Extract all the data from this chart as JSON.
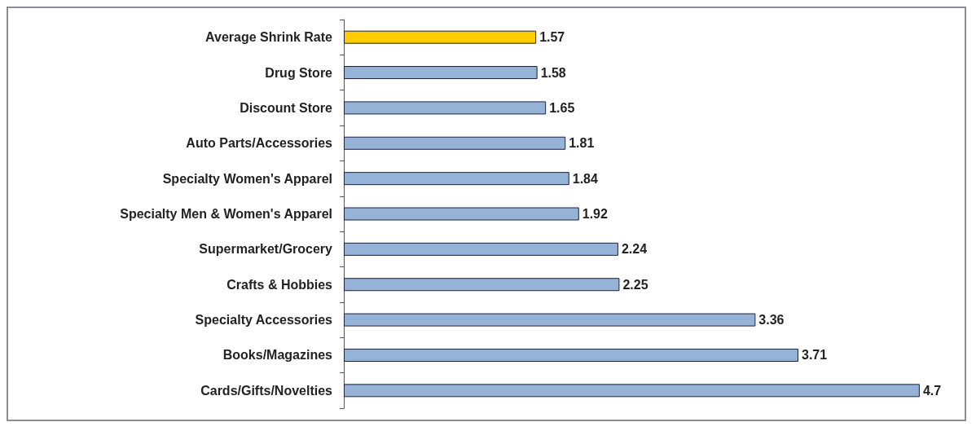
{
  "chart_data": {
    "type": "bar",
    "orientation": "horizontal",
    "categories": [
      "Average Shrink Rate",
      "Drug Store",
      "Discount Store",
      "Auto Parts/Accessories",
      "Specialty Women's Apparel",
      "Specialty Men & Women's Apparel",
      "Supermarket/Grocery",
      "Crafts & Hobbies",
      "Specialty Accessories",
      "Books/Magazines",
      "Cards/Gifts/Novelties"
    ],
    "values": [
      1.57,
      1.58,
      1.65,
      1.81,
      1.84,
      1.92,
      2.24,
      2.25,
      3.36,
      3.71,
      4.7
    ],
    "colors": [
      "#ffcc00",
      "#95b3d7",
      "#95b3d7",
      "#95b3d7",
      "#95b3d7",
      "#95b3d7",
      "#95b3d7",
      "#95b3d7",
      "#95b3d7",
      "#95b3d7",
      "#95b3d7"
    ],
    "tick_labels": "y",
    "data_labels": true
  }
}
